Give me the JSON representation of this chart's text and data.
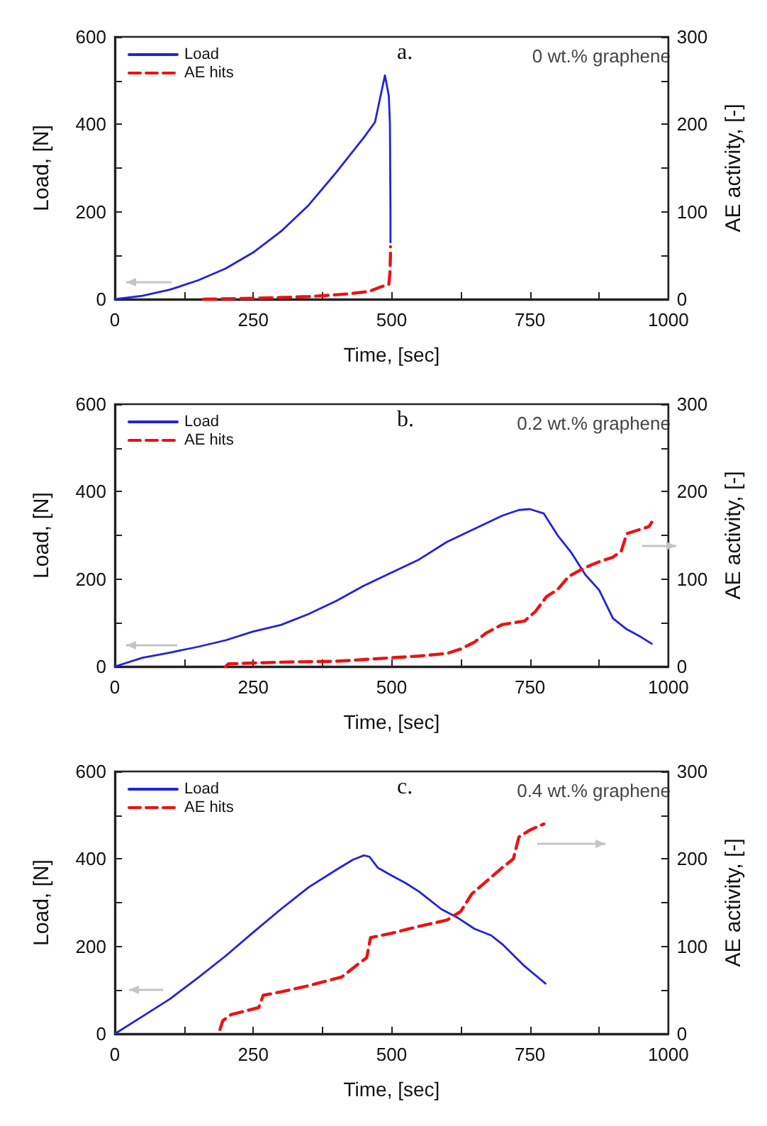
{
  "chart_data": [
    {
      "type": "line",
      "title": "a.",
      "annotations": [
        "0 wt.% graphene"
      ],
      "xlabel": "Time, [sec]",
      "ylabel": "Load, [N]",
      "y2label": "AE activity, [-]",
      "legend": "top left",
      "marker": "none",
      "grid": false,
      "xlim": [
        0,
        1000
      ],
      "xticks": [
        0,
        {
          "value": 125,
          "label": null
        },
        250,
        {
          "value": 375,
          "label": null
        },
        500,
        {
          "value": 625,
          "label": null
        },
        750,
        {
          "value": 875,
          "label": null
        },
        1000
      ],
      "ylim": [
        0,
        600
      ],
      "yticks": [
        0,
        {
          "value": 100,
          "label": null
        },
        200,
        {
          "value": 300,
          "label": null
        },
        400,
        {
          "value": 500,
          "label": null
        },
        600
      ],
      "y2lim": [
        0,
        300
      ],
      "y2ticks": [
        0,
        {
          "value": 50,
          "label": null
        },
        100,
        {
          "value": 150,
          "label": null
        },
        200,
        {
          "value": 250,
          "label": null
        },
        300
      ],
      "series": [
        {
          "name": "Load",
          "color": "#2222dd",
          "line_style": "solid",
          "x": [
            0,
            50,
            100,
            150,
            200,
            250,
            300,
            350,
            400,
            450,
            470,
            488,
            495,
            497,
            498,
            498
          ],
          "values": [
            0,
            8,
            22,
            43,
            70,
            107,
            155,
            215,
            290,
            370,
            405,
            512,
            465,
            400,
            200,
            130
          ]
        },
        {
          "name": "AE hits",
          "color": "#ee1111",
          "line_style": "dashed",
          "axis": "y2",
          "x": [
            160,
            250,
            350,
            420,
            460,
            480,
            495,
            497,
            498,
            498
          ],
          "values": [
            0,
            1,
            3,
            6,
            9,
            14,
            17,
            30,
            50,
            60
          ]
        }
      ]
    },
    {
      "type": "line",
      "title": "b.",
      "annotations": [
        "0.2 wt.% graphene"
      ],
      "xlabel": "Time, [sec]",
      "ylabel": "Load, [N]",
      "y2label": "AE activity, [-]",
      "legend": "top left",
      "marker": "none",
      "grid": false,
      "xlim": [
        0,
        1000
      ],
      "xticks": [
        0,
        {
          "value": 125,
          "label": null
        },
        250,
        {
          "value": 375,
          "label": null
        },
        500,
        {
          "value": 625,
          "label": null
        },
        750,
        {
          "value": 875,
          "label": null
        },
        1000
      ],
      "ylim": [
        0,
        600
      ],
      "yticks": [
        0,
        {
          "value": 100,
          "label": null
        },
        200,
        {
          "value": 300,
          "label": null
        },
        400,
        {
          "value": 500,
          "label": null
        },
        600
      ],
      "y2lim": [
        0,
        300
      ],
      "y2ticks": [
        0,
        {
          "value": 50,
          "label": null
        },
        100,
        {
          "value": 150,
          "label": null
        },
        200,
        {
          "value": 250,
          "label": null
        },
        300
      ],
      "series": [
        {
          "name": "Load",
          "color": "#2222dd",
          "line_style": "solid",
          "x": [
            0,
            50,
            100,
            150,
            200,
            250,
            300,
            350,
            400,
            450,
            500,
            550,
            600,
            650,
            700,
            730,
            750,
            775,
            800,
            825,
            850,
            875,
            900,
            925,
            950,
            970
          ],
          "values": [
            0,
            20,
            32,
            45,
            60,
            80,
            95,
            120,
            150,
            185,
            215,
            245,
            285,
            315,
            345,
            358,
            360,
            350,
            300,
            260,
            210,
            175,
            110,
            85,
            68,
            52
          ]
        },
        {
          "name": "AE hits",
          "color": "#ee1111",
          "line_style": "dashed",
          "axis": "y2",
          "x": [
            200,
            205,
            250,
            300,
            400,
            500,
            550,
            600,
            625,
            650,
            670,
            700,
            740,
            760,
            780,
            800,
            820,
            840,
            860,
            880,
            900,
            915,
            925,
            950,
            965,
            970
          ],
          "values": [
            0,
            3,
            4,
            5,
            6,
            10,
            12,
            15,
            20,
            28,
            38,
            48,
            52,
            63,
            80,
            88,
            103,
            110,
            116,
            121,
            125,
            132,
            152,
            157,
            160,
            165
          ]
        }
      ]
    },
    {
      "type": "line",
      "title": "c.",
      "annotations": [
        "0.4 wt.% graphene"
      ],
      "xlabel": "Time, [sec]",
      "ylabel": "Load, [N]",
      "y2label": "AE activity, [-]",
      "legend": "top left",
      "marker": "none",
      "grid": false,
      "xlim": [
        0,
        1000
      ],
      "xticks": [
        0,
        {
          "value": 125,
          "label": null
        },
        250,
        {
          "value": 375,
          "label": null
        },
        500,
        {
          "value": 625,
          "label": null
        },
        750,
        {
          "value": 875,
          "label": null
        },
        1000
      ],
      "ylim": [
        0,
        600
      ],
      "yticks": [
        0,
        {
          "value": 100,
          "label": null
        },
        200,
        {
          "value": 300,
          "label": null
        },
        400,
        {
          "value": 500,
          "label": null
        },
        600
      ],
      "y2lim": [
        0,
        300
      ],
      "y2ticks": [
        0,
        {
          "value": 50,
          "label": null
        },
        100,
        {
          "value": 150,
          "label": null
        },
        200,
        {
          "value": 250,
          "label": null
        },
        300
      ],
      "series": [
        {
          "name": "Load",
          "color": "#2222dd",
          "line_style": "solid",
          "x": [
            0,
            50,
            100,
            150,
            200,
            250,
            300,
            350,
            400,
            430,
            450,
            460,
            475,
            500,
            525,
            550,
            590,
            620,
            650,
            680,
            700,
            740,
            778
          ],
          "values": [
            0,
            40,
            80,
            128,
            178,
            232,
            285,
            335,
            375,
            398,
            408,
            405,
            380,
            362,
            345,
            325,
            285,
            265,
            240,
            225,
            205,
            155,
            115
          ]
        },
        {
          "name": "AE hits",
          "color": "#ee1111",
          "line_style": "dashed",
          "axis": "y2",
          "x": [
            190,
            195,
            210,
            260,
            268,
            300,
            350,
            410,
            440,
            455,
            462,
            500,
            550,
            600,
            625,
            645,
            700,
            720,
            730,
            750,
            775
          ],
          "values": [
            5,
            15,
            22,
            30,
            44,
            48,
            55,
            65,
            80,
            87,
            110,
            115,
            123,
            130,
            140,
            160,
            190,
            200,
            225,
            233,
            240
          ]
        }
      ]
    }
  ]
}
